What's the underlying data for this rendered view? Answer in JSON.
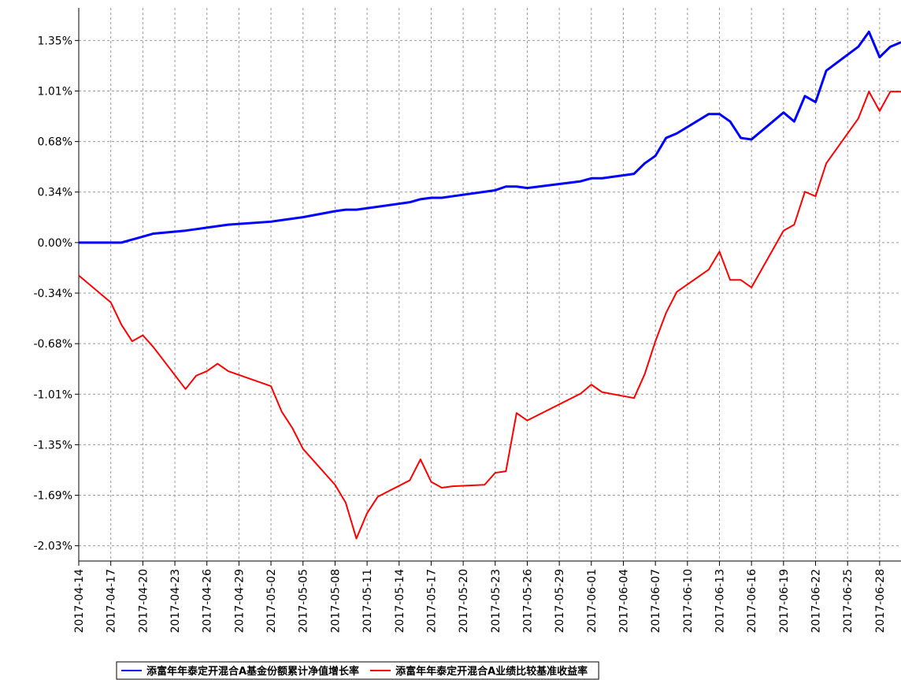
{
  "chart_data": {
    "type": "line",
    "x": [
      "2017-04-14",
      "2017-04-17",
      "2017-04-18",
      "2017-04-19",
      "2017-04-20",
      "2017-04-21",
      "2017-04-24",
      "2017-04-25",
      "2017-04-26",
      "2017-04-27",
      "2017-04-28",
      "2017-05-02",
      "2017-05-03",
      "2017-05-04",
      "2017-05-05",
      "2017-05-08",
      "2017-05-09",
      "2017-05-10",
      "2017-05-11",
      "2017-05-12",
      "2017-05-15",
      "2017-05-16",
      "2017-05-17",
      "2017-05-18",
      "2017-05-19",
      "2017-05-22",
      "2017-05-23",
      "2017-05-24",
      "2017-05-25",
      "2017-05-26",
      "2017-05-31",
      "2017-06-01",
      "2017-06-02",
      "2017-06-05",
      "2017-06-06",
      "2017-06-07",
      "2017-06-08",
      "2017-06-09",
      "2017-06-12",
      "2017-06-13",
      "2017-06-14",
      "2017-06-15",
      "2017-06-16",
      "2017-06-19",
      "2017-06-20",
      "2017-06-21",
      "2017-06-22",
      "2017-06-23",
      "2017-06-26",
      "2017-06-27",
      "2017-06-28",
      "2017-06-29",
      "2017-06-30"
    ],
    "series": [
      {
        "name": "添富年年泰定开混合A基金份额累计净值增长率",
        "color": "#0000ff",
        "values": [
          0,
          0,
          0,
          0.02,
          0.04,
          0.06,
          0.08,
          0.09,
          0.1,
          0.11,
          0.12,
          0.14,
          0.15,
          0.16,
          0.17,
          0.21,
          0.22,
          0.22,
          0.23,
          0.24,
          0.27,
          0.29,
          0.3,
          0.3,
          0.31,
          0.34,
          0.35,
          0.375,
          0.375,
          0.365,
          0.41,
          0.43,
          0.43,
          0.46,
          0.53,
          0.58,
          0.7,
          0.73,
          0.86,
          0.86,
          0.81,
          0.7,
          0.69,
          0.87,
          0.81,
          0.98,
          0.94,
          1.15,
          1.31,
          1.41,
          1.24,
          1.31,
          1.34
        ]
      },
      {
        "name": "添富年年泰定开混合A业绩比较基准收益率",
        "color": "#ff0000",
        "values": [
          -0.22,
          -0.4,
          -0.55,
          -0.66,
          -0.62,
          -0.7,
          -0.98,
          -0.89,
          -0.86,
          -0.81,
          -0.86,
          -0.96,
          -1.13,
          -1.24,
          -1.38,
          -1.62,
          -1.74,
          -1.98,
          -1.81,
          -1.7,
          -1.59,
          -1.45,
          -1.6,
          -1.64,
          -1.63,
          -1.62,
          -1.54,
          -1.53,
          -1.14,
          -1.19,
          -1.01,
          -0.95,
          -1.0,
          -1.04,
          -0.88,
          -0.66,
          -0.47,
          -0.33,
          -0.18,
          -0.06,
          -0.25,
          -0.25,
          -0.3,
          0.08,
          0.12,
          0.34,
          0.31,
          0.53,
          0.83,
          1.01,
          0.88,
          1.01,
          1.01
        ]
      }
    ],
    "xlim": [
      "2017-04-14",
      "2017-06-30"
    ],
    "xticks": [
      "2017-04-14",
      "2017-04-17",
      "2017-04-20",
      "2017-04-23",
      "2017-04-26",
      "2017-04-29",
      "2017-05-02",
      "2017-05-05",
      "2017-05-08",
      "2017-05-11",
      "2017-05-14",
      "2017-05-17",
      "2017-05-20",
      "2017-05-23",
      "2017-05-26",
      "2017-05-29",
      "2017-06-01",
      "2017-06-04",
      "2017-06-07",
      "2017-06-10",
      "2017-06-13",
      "2017-06-16",
      "2017-06-19",
      "2017-06-22",
      "2017-06-25",
      "2017-06-28"
    ],
    "ylim": [
      -2.13,
      1.57
    ],
    "yticks": [
      {
        "value": 1.352,
        "label": "1.35%"
      },
      {
        "value": 1.014,
        "label": "1.01%"
      },
      {
        "value": 0.676,
        "label": "0.68%"
      },
      {
        "value": 0.338,
        "label": "0.34%"
      },
      {
        "value": 0,
        "label": "0.00%"
      },
      {
        "value": -0.338,
        "label": "-0.34%"
      },
      {
        "value": -0.676,
        "label": "-0.68%"
      },
      {
        "value": -1.014,
        "label": "-1.01%"
      },
      {
        "value": -1.352,
        "label": "-1.35%"
      },
      {
        "value": -1.69,
        "label": "-1.69%"
      },
      {
        "value": -2.028,
        "label": "-2.03%"
      }
    ],
    "grid": true
  }
}
